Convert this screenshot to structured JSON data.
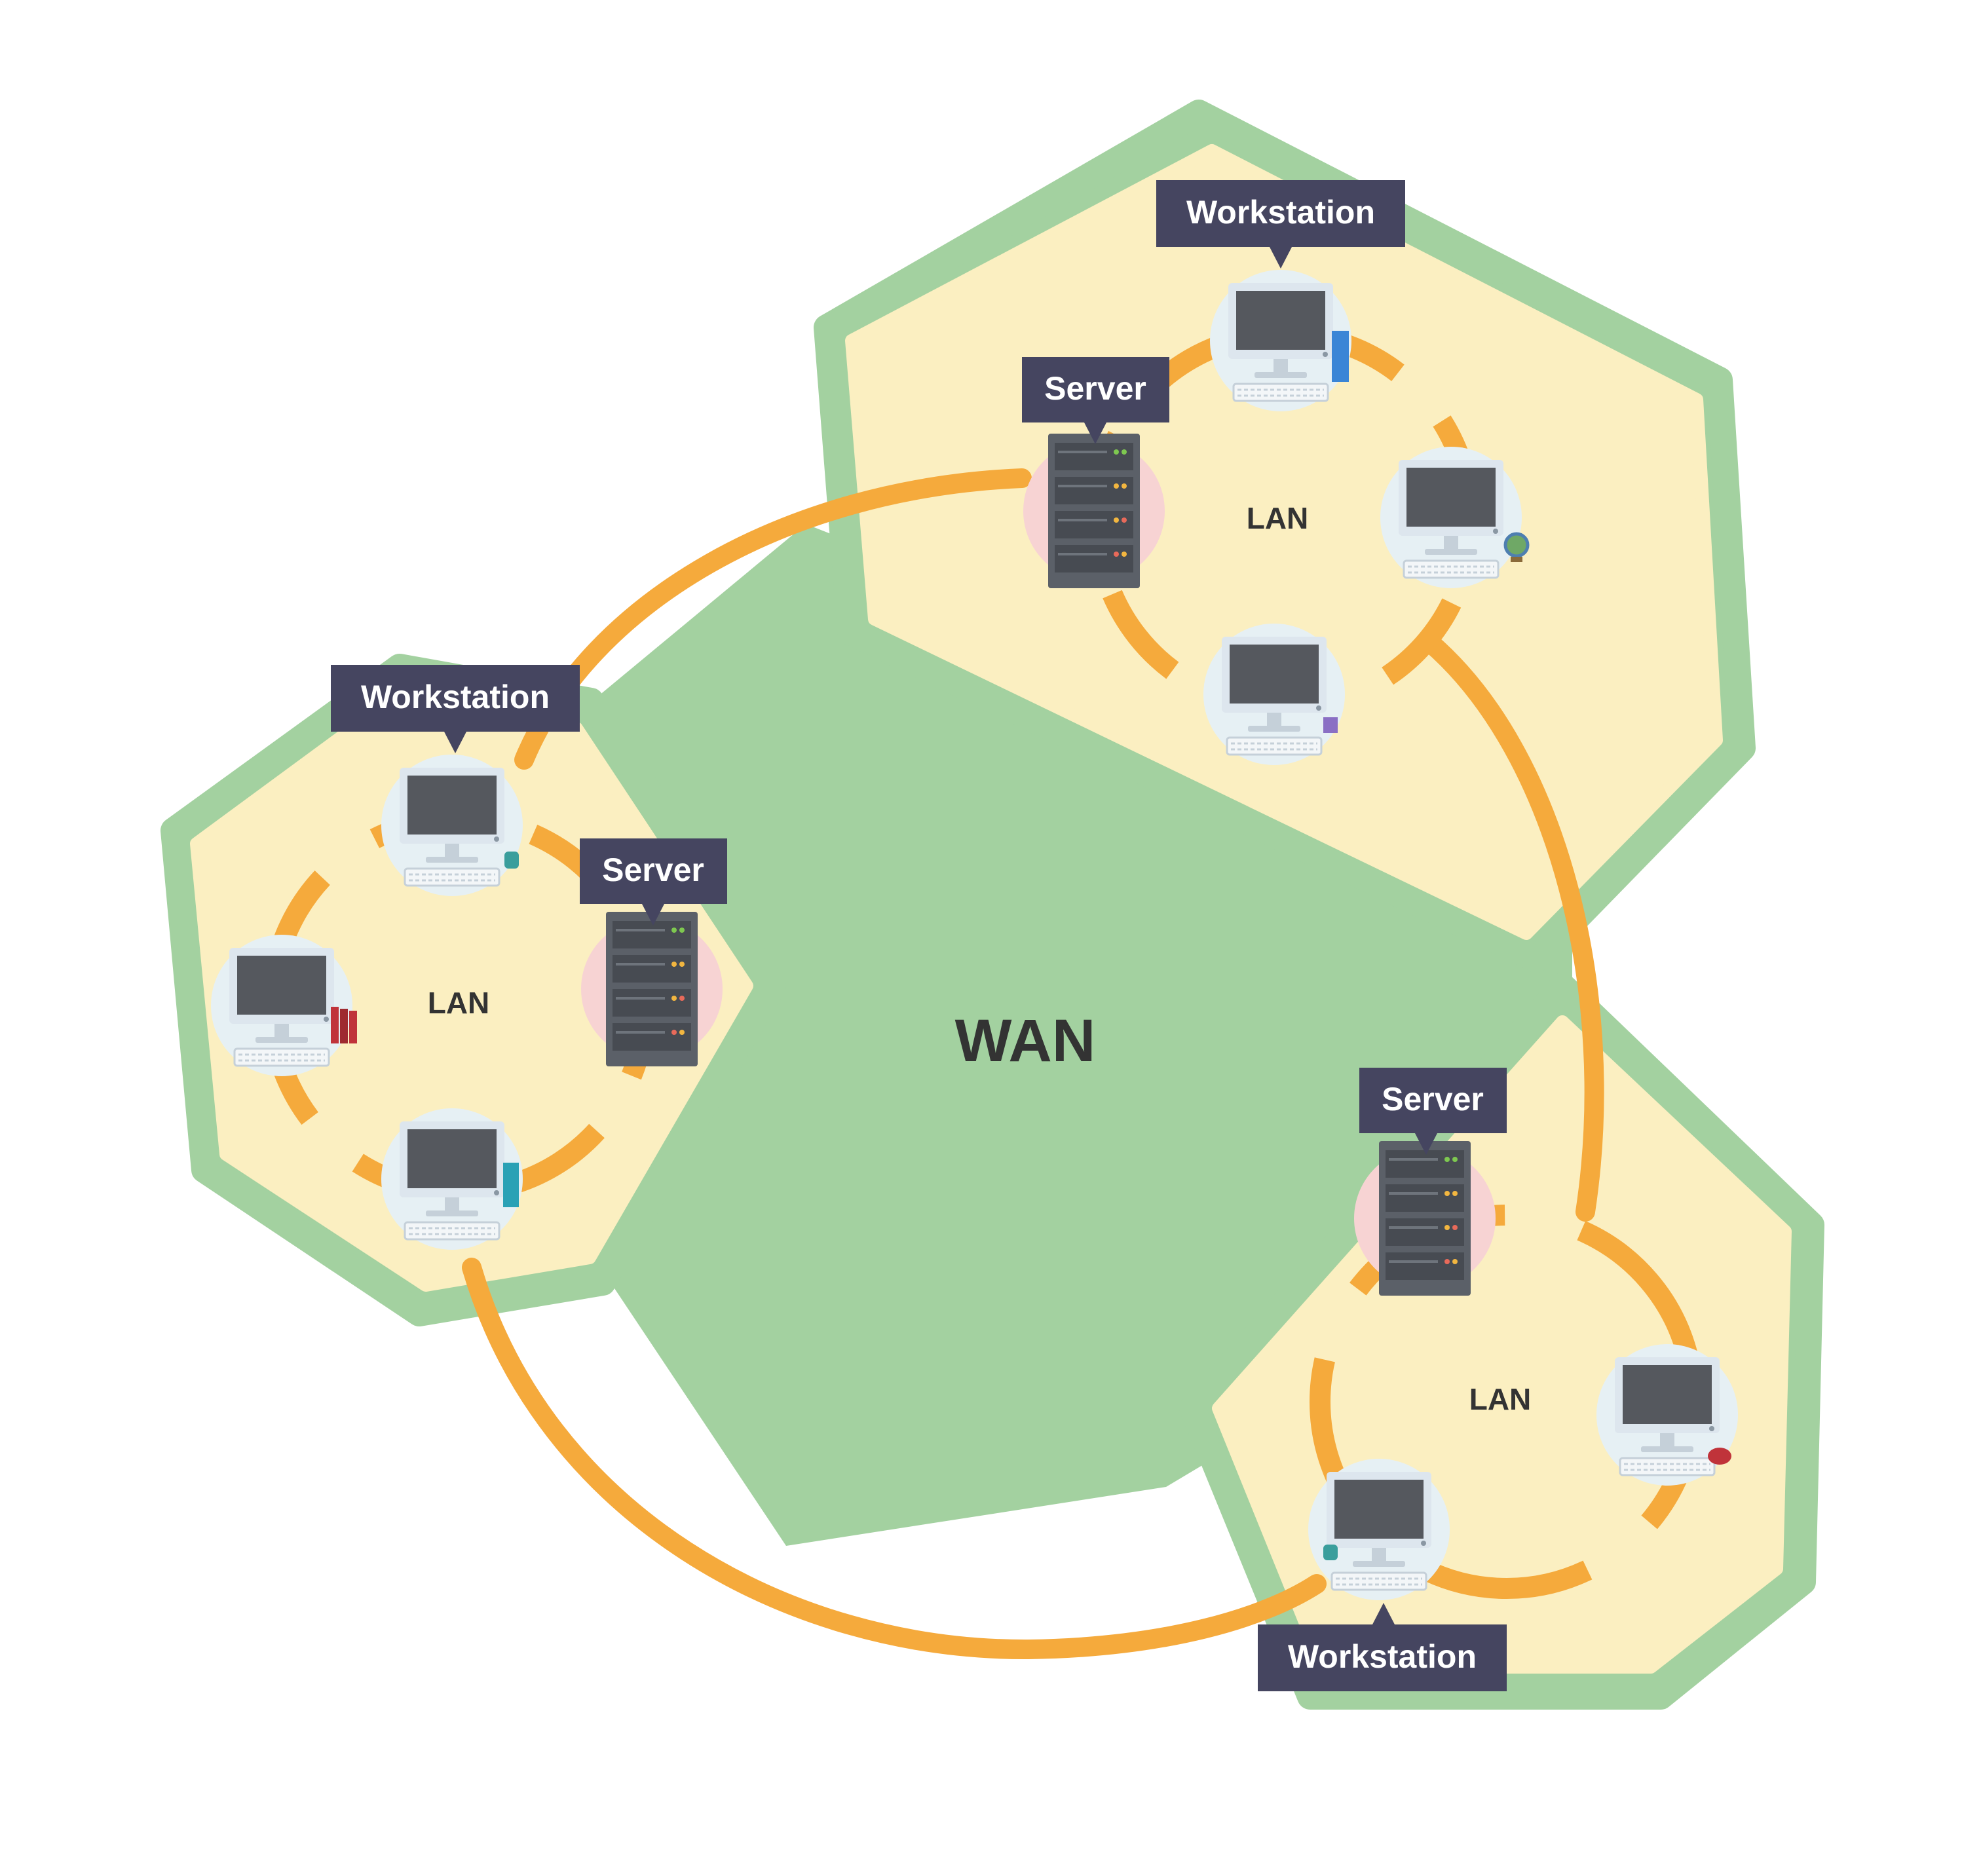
{
  "diagram": {
    "wan_label": "WAN",
    "lan_label": "LAN",
    "workstation_label": "Workstation",
    "server_label": "Server"
  },
  "colors": {
    "wan_fill": "#a3d1a0",
    "lan_fill": "#fbefc1",
    "link": "#f5aa3c",
    "tag_bg": "#454560",
    "screen": "#55585e",
    "monitor_frame": "#dde6ee",
    "server_body": "#5b6068",
    "server_halo": "#f7d3d3",
    "device_halo": "#e6f0f4"
  },
  "icons": {
    "workstation": "desktop-computer-icon",
    "server": "server-rack-icon"
  }
}
